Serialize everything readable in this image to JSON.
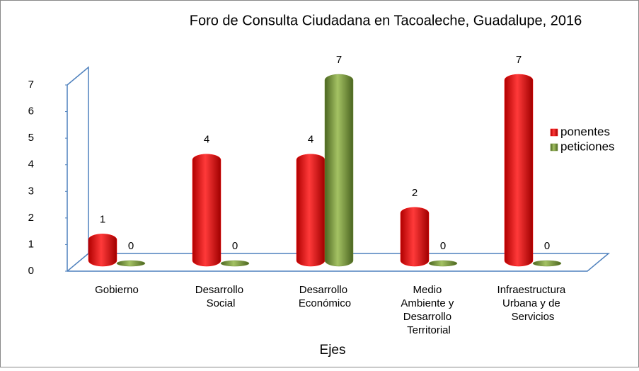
{
  "chart_data": {
    "type": "bar",
    "title": "Foro de Consulta Ciudadana en Tacoaleche, Guadalupe, 2016",
    "x_label": "Ejes",
    "categories": [
      "Gobierno",
      "Desarrollo Social",
      "Desarrollo Económico",
      "Medio Ambiente y Desarrollo Territorial",
      "Infraestructura Urbana y de Servicios"
    ],
    "series": [
      {
        "name": "ponentes",
        "color": "#ff0000",
        "values": [
          1,
          4,
          4,
          2,
          7
        ]
      },
      {
        "name": "peticiones",
        "color": "#77933c",
        "values": [
          0,
          0,
          7,
          0,
          0
        ]
      }
    ],
    "ylim": [
      0,
      7
    ],
    "yticks": [
      0,
      1,
      2,
      3,
      4,
      5,
      6,
      7
    ],
    "legend": "right",
    "grid": false
  }
}
